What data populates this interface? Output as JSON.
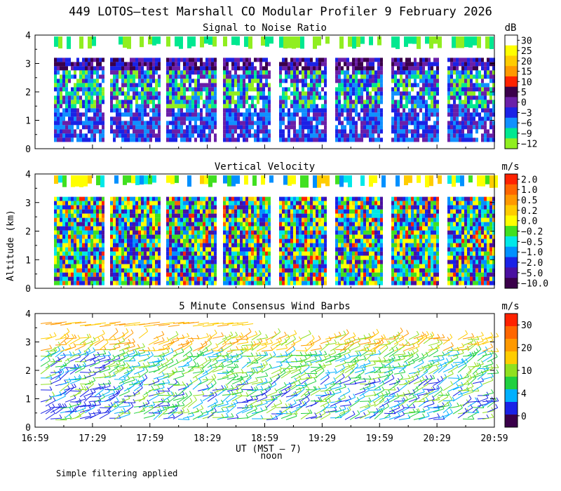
{
  "title": "449 LOTOS—test Marshall CO Modular Profiler  9 February 2026",
  "ylabel": "Altitude (km)",
  "xlabel": "UT  (MST — 7)",
  "noon_label": "noon",
  "footer": "Simple filtering applied",
  "x_ticks": [
    "16:59",
    "17:29",
    "17:59",
    "18:29",
    "18:59",
    "19:29",
    "19:59",
    "20:29",
    "20:59"
  ],
  "chart_data": [
    {
      "type": "heatmap",
      "title": "Signal to Noise Ratio",
      "unit": "dB",
      "xlabel": "UT (MST - 7)",
      "ylabel": "Altitude (km)",
      "x_range": [
        "16:59",
        "20:59"
      ],
      "ylim": [
        0,
        4
      ],
      "y_ticks": [
        "0",
        "1",
        "2",
        "3",
        "4"
      ],
      "legend_labels": [
        "30",
        "25",
        "20",
        "15",
        "10",
        "5",
        "0",
        "−3",
        "−6",
        "−9",
        "−12"
      ],
      "legend_colors": [
        "#ffffff",
        "#ffff00",
        "#ffcc00",
        "#ff9900",
        "#ff2200",
        "#3a004a",
        "#6a1fa8",
        "#1a22e6",
        "#1090ff",
        "#00e890",
        "#90ee20"
      ]
    },
    {
      "type": "heatmap",
      "title": "Vertical Velocity",
      "unit": "m/s",
      "xlabel": "UT (MST - 7)",
      "ylabel": "Altitude (km)",
      "x_range": [
        "16:59",
        "20:59"
      ],
      "ylim": [
        0,
        4
      ],
      "y_ticks": [
        "0",
        "1",
        "2",
        "3",
        "4"
      ],
      "legend_labels": [
        "2.0",
        "1.0",
        "0.5",
        "0.2",
        "0.0",
        "−0.2",
        "−0.5",
        "−1.0",
        "−2.0",
        "−5.0",
        "−10.0"
      ],
      "legend_colors": [
        "#ff2200",
        "#ff6600",
        "#ff9900",
        "#ffcc00",
        "#ffff00",
        "#40e020",
        "#00e8e8",
        "#0090ff",
        "#1a22e6",
        "#4a10a0",
        "#3a004a"
      ]
    },
    {
      "type": "scatter",
      "title": "5 Minute Consensus Wind Barbs",
      "unit": "m/s",
      "xlabel": "UT (MST - 7)",
      "ylabel": "Altitude (km)",
      "x_range": [
        "16:59",
        "20:59"
      ],
      "ylim": [
        0,
        4
      ],
      "y_ticks": [
        "0",
        "1",
        "2",
        "3",
        "4"
      ],
      "legend_labels": [
        "30",
        "20",
        "10",
        "4",
        "0"
      ],
      "legend_colors": [
        "#ff2200",
        "#ff6600",
        "#ff9900",
        "#ffcc00",
        "#90e020",
        "#20d040",
        "#00b0ff",
        "#1a22e6",
        "#3a004a"
      ]
    }
  ]
}
